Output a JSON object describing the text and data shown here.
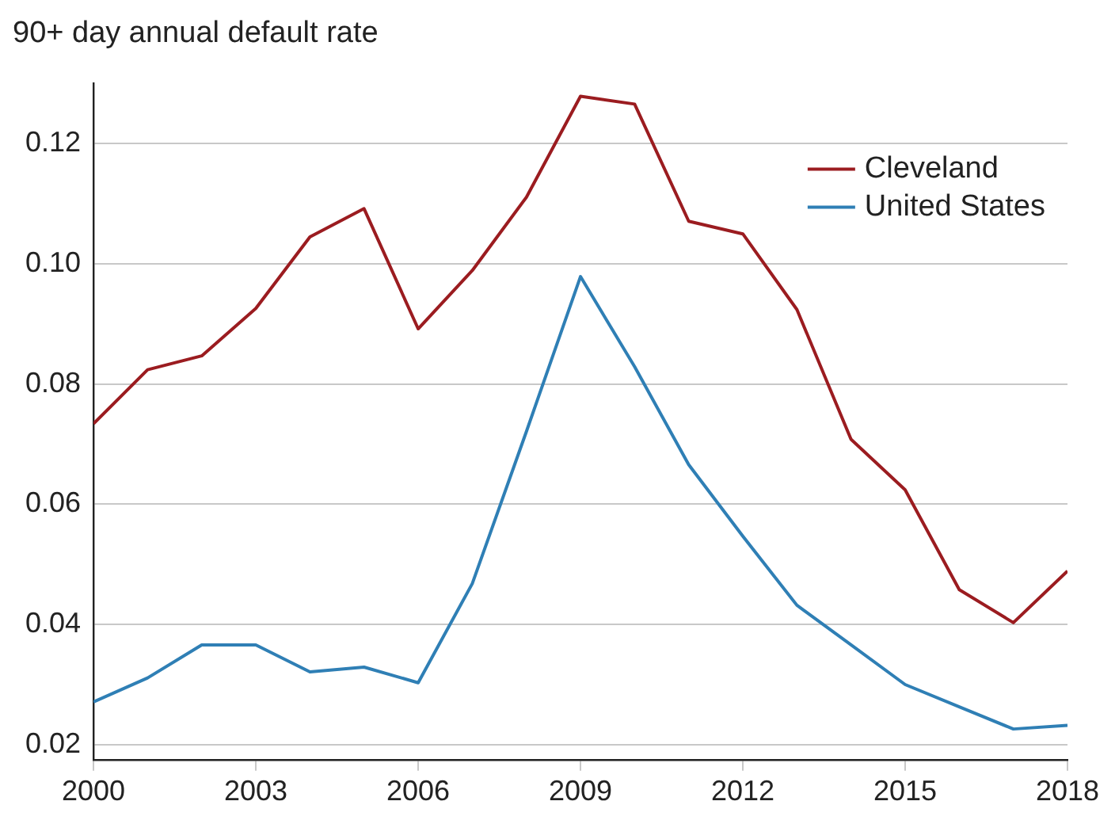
{
  "chart_data": {
    "type": "line",
    "ylabel": "90+ day annual default rate",
    "x": [
      2000,
      2001,
      2002,
      2003,
      2004,
      2005,
      2006,
      2007,
      2008,
      2009,
      2010,
      2011,
      2012,
      2013,
      2014,
      2015,
      2016,
      2017,
      2018
    ],
    "series": [
      {
        "name": "Cleveland",
        "color": "#9b1c20",
        "values": [
          0.0734,
          0.0824,
          0.0847,
          0.0926,
          0.1045,
          0.1092,
          0.0892,
          0.0989,
          0.1111,
          0.1279,
          0.1266,
          0.1071,
          0.105,
          0.0924,
          0.0708,
          0.0624,
          0.0458,
          0.0403,
          0.0489
        ]
      },
      {
        "name": "United States",
        "color": "#2f7fb5",
        "values": [
          0.0271,
          0.0311,
          0.0366,
          0.0366,
          0.0321,
          0.0329,
          0.0303,
          0.0468,
          0.0721,
          0.0979,
          0.0829,
          0.0666,
          0.0547,
          0.0432,
          0.0366,
          0.03,
          0.0263,
          0.0226,
          0.0232
        ]
      }
    ],
    "xlim": [
      2000,
      2018
    ],
    "xticks": [
      2000,
      2003,
      2006,
      2009,
      2012,
      2015,
      2018
    ],
    "ylim": [
      0.0175,
      0.13
    ],
    "yticks": [
      {
        "value": 0.02,
        "label": "0.02"
      },
      {
        "value": 0.04,
        "label": "0.04"
      },
      {
        "value": 0.06,
        "label": "0.06"
      },
      {
        "value": 0.08,
        "label": "0.08"
      },
      {
        "value": 0.1,
        "label": "0.10"
      },
      {
        "value": 0.12,
        "label": "0.12"
      }
    ],
    "grid": "y",
    "legend": "top right",
    "marker": "none",
    "line_style": "solid"
  }
}
